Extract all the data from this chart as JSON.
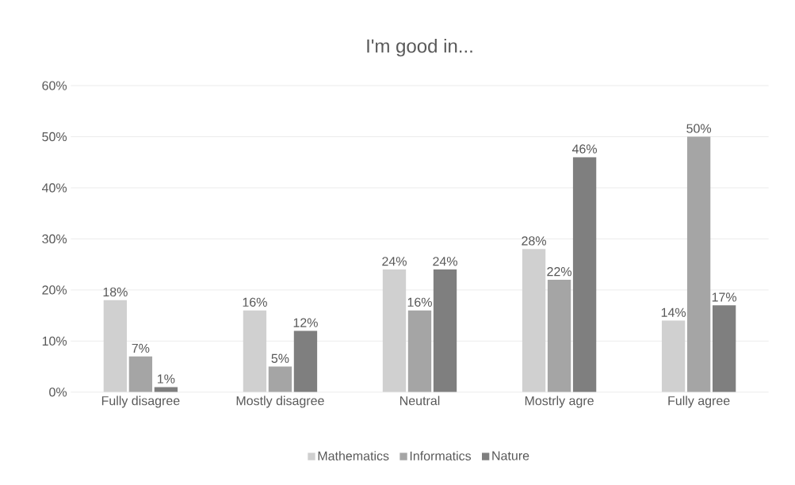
{
  "chart_data": {
    "type": "bar",
    "title": "I'm good in...",
    "categories": [
      "Fully disagree",
      "Mostly disagree",
      "Neutral",
      "Mostrly agre",
      "Fully agree"
    ],
    "series": [
      {
        "name": "Mathematics",
        "color": "#d0d0d0",
        "values": [
          18,
          16,
          24,
          28,
          14
        ],
        "value_labels": [
          "18%",
          "16%",
          "24%",
          "28%",
          "14%"
        ]
      },
      {
        "name": "Informatics",
        "color": "#a5a5a5",
        "values": [
          7,
          5,
          16,
          22,
          50
        ],
        "value_labels": [
          "7%",
          "5%",
          "16%",
          "22%",
          "50%"
        ]
      },
      {
        "name": "Nature",
        "color": "#7f7f7f",
        "values": [
          1,
          12,
          24,
          46,
          17
        ],
        "value_labels": [
          "1%",
          "12%",
          "24%",
          "46%",
          "17%"
        ]
      }
    ],
    "ylim": [
      0,
      60
    ],
    "yticks": [
      {
        "value": 0,
        "label": "0%"
      },
      {
        "value": 10,
        "label": "10%"
      },
      {
        "value": 20,
        "label": "20%"
      },
      {
        "value": 30,
        "label": "30%"
      },
      {
        "value": 40,
        "label": "40%"
      },
      {
        "value": 50,
        "label": "50%"
      },
      {
        "value": 60,
        "label": "60%"
      }
    ],
    "grid": "y",
    "legend": "bottom"
  }
}
